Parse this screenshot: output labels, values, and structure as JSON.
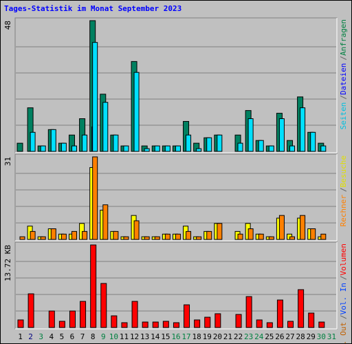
{
  "chart_data": {
    "type": "bar",
    "title": "Tages-Statistik im Monat September 2023",
    "categories": [
      "1",
      "2",
      "3",
      "4",
      "5",
      "6",
      "7",
      "8",
      "9",
      "10",
      "11",
      "12",
      "13",
      "14",
      "15",
      "16",
      "17",
      "18",
      "19",
      "20",
      "21",
      "22",
      "23",
      "24",
      "25",
      "26",
      "27",
      "28",
      "29",
      "30",
      "31"
    ],
    "category_colors": [
      "#000000",
      "#000080",
      "#008040",
      "#000000",
      "#000000",
      "#000000",
      "#000000",
      "#000000",
      "#008040",
      "#008040",
      "#000000",
      "#000000",
      "#000000",
      "#000000",
      "#000000",
      "#008040",
      "#008040",
      "#000000",
      "#000000",
      "#000000",
      "#000000",
      "#000000",
      "#008040",
      "#008040",
      "#000000",
      "#000000",
      "#000000",
      "#000000",
      "#000000",
      "#008040",
      "#008040"
    ],
    "separator": "/",
    "panels": [
      {
        "ylim": [
          0,
          48
        ],
        "yticks": [
          48
        ],
        "grid": true,
        "side_labels": [
          {
            "text": "Anfragen",
            "color": "#008040"
          },
          {
            "text": "Dateien",
            "color": "#0000ff"
          },
          {
            "text": "Seiten",
            "color": "#00c0e0"
          }
        ],
        "series": [
          {
            "name": "Anfragen",
            "color": "#008060",
            "values": [
              3,
              16,
              2,
              8,
              3,
              6,
              12,
              48,
              21,
              6,
              2,
              33,
              2,
              2,
              2,
              2,
              11,
              3,
              5,
              6,
              0,
              6,
              15,
              4,
              2,
              14,
              4,
              20,
              7,
              3,
              0
            ]
          },
          {
            "name": "Dateien",
            "color": "#0000ff",
            "values": [
              0,
              0,
              0,
              0,
              0,
              0,
              0,
              9,
              0,
              0,
              0,
              0,
              0,
              0,
              0,
              0,
              0,
              0,
              0,
              0,
              0,
              0,
              0,
              0,
              0,
              0,
              0,
              0,
              0,
              0,
              0
            ]
          },
          {
            "name": "Seiten",
            "color": "#00e0ff",
            "values": [
              0,
              7,
              2,
              8,
              3,
              2,
              6,
              40,
              18,
              6,
              2,
              29,
              1,
              2,
              2,
              2,
              6,
              1,
              5,
              6,
              0,
              3,
              12,
              4,
              2,
              12,
              2,
              16,
              7,
              2,
              0
            ]
          }
        ]
      },
      {
        "ylim": [
          0,
          31
        ],
        "yticks": [
          31
        ],
        "grid": true,
        "side_labels": [
          {
            "text": "Besuche",
            "color": "#e0e000"
          },
          {
            "text": "Rechner",
            "color": "#ff8000"
          }
        ],
        "series": [
          {
            "name": "Besuche",
            "color": "#ffff00",
            "values": [
              0,
              5,
              1,
              4,
              2,
              2,
              6,
              27,
              11,
              3,
              1,
              9,
              1,
              1,
              2,
              2,
              5,
              1,
              3,
              6,
              0,
              3,
              6,
              2,
              1,
              8,
              2,
              8,
              4,
              1,
              0
            ]
          },
          {
            "name": "Rechner",
            "color": "#ff8000",
            "values": [
              1,
              3,
              1,
              4,
              2,
              3,
              3,
              31,
              13,
              3,
              1,
              7,
              1,
              1,
              2,
              2,
              3,
              1,
              3,
              6,
              0,
              2,
              4,
              2,
              1,
              9,
              1,
              9,
              4,
              2,
              0
            ]
          }
        ]
      },
      {
        "ylim": [
          0,
          13.72
        ],
        "yticks": [
          {
            "value": 13.72,
            "label": "13.72 KB"
          }
        ],
        "grid": true,
        "side_labels": [
          {
            "text": "Volumen",
            "color": "#ff0000"
          },
          {
            "text": "Vol. In",
            "color": "#0040ff"
          },
          {
            "text": "Vol. Out",
            "color": "#c06000"
          }
        ],
        "series": [
          {
            "name": "Volumen",
            "color": "#ff0000",
            "values": [
              1.26,
              5.6,
              0,
              2.74,
              1.03,
              2.74,
              4.34,
              13.72,
              7.32,
              1.94,
              0.8,
              4.34,
              0.91,
              0.91,
              1.03,
              0.8,
              3.77,
              1.26,
              1.71,
              2.29,
              0,
              2.17,
              5.14,
              1.26,
              0.8,
              4.57,
              1.03,
              6.29,
              2.4,
              0.91,
              0
            ]
          }
        ]
      }
    ]
  }
}
